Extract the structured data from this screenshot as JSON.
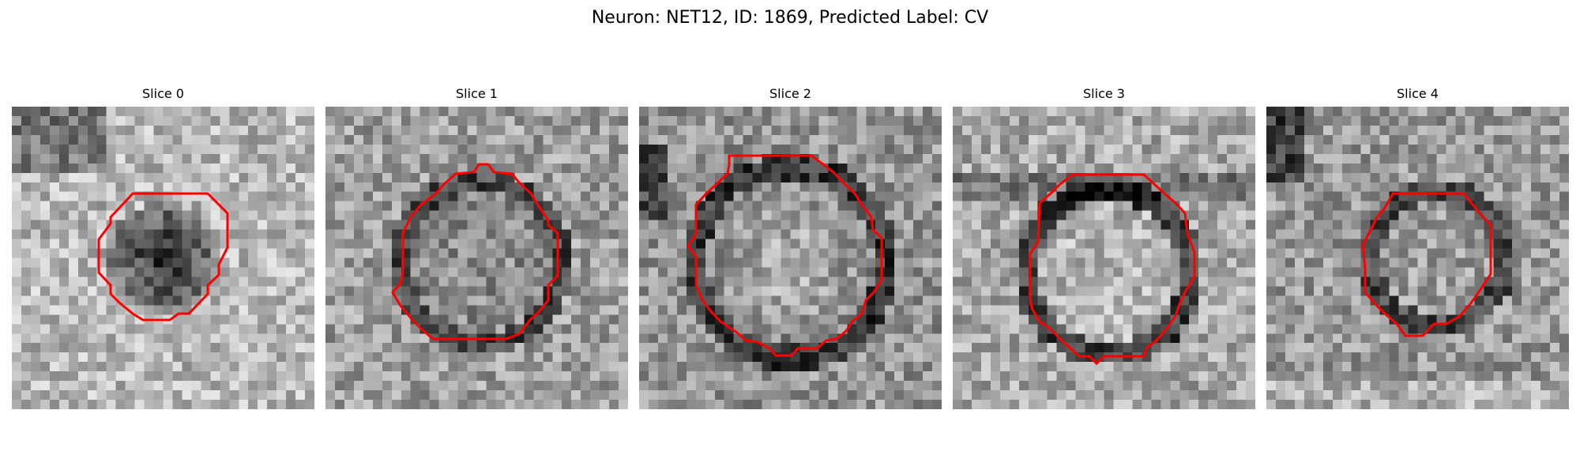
{
  "figure": {
    "title": "Neuron: NET12, ID: 1869, Predicted Label: CV"
  },
  "panels": [
    {
      "title": "Slice 0",
      "contour_color": "#ff0000"
    },
    {
      "title": "Slice 1",
      "contour_color": "#ff0000"
    },
    {
      "title": "Slice 2",
      "contour_color": "#ff0000"
    },
    {
      "title": "Slice 3",
      "contour_color": "#ff0000"
    },
    {
      "title": "Slice 4",
      "contour_color": "#ff0000"
    }
  ],
  "colormap": "gray"
}
